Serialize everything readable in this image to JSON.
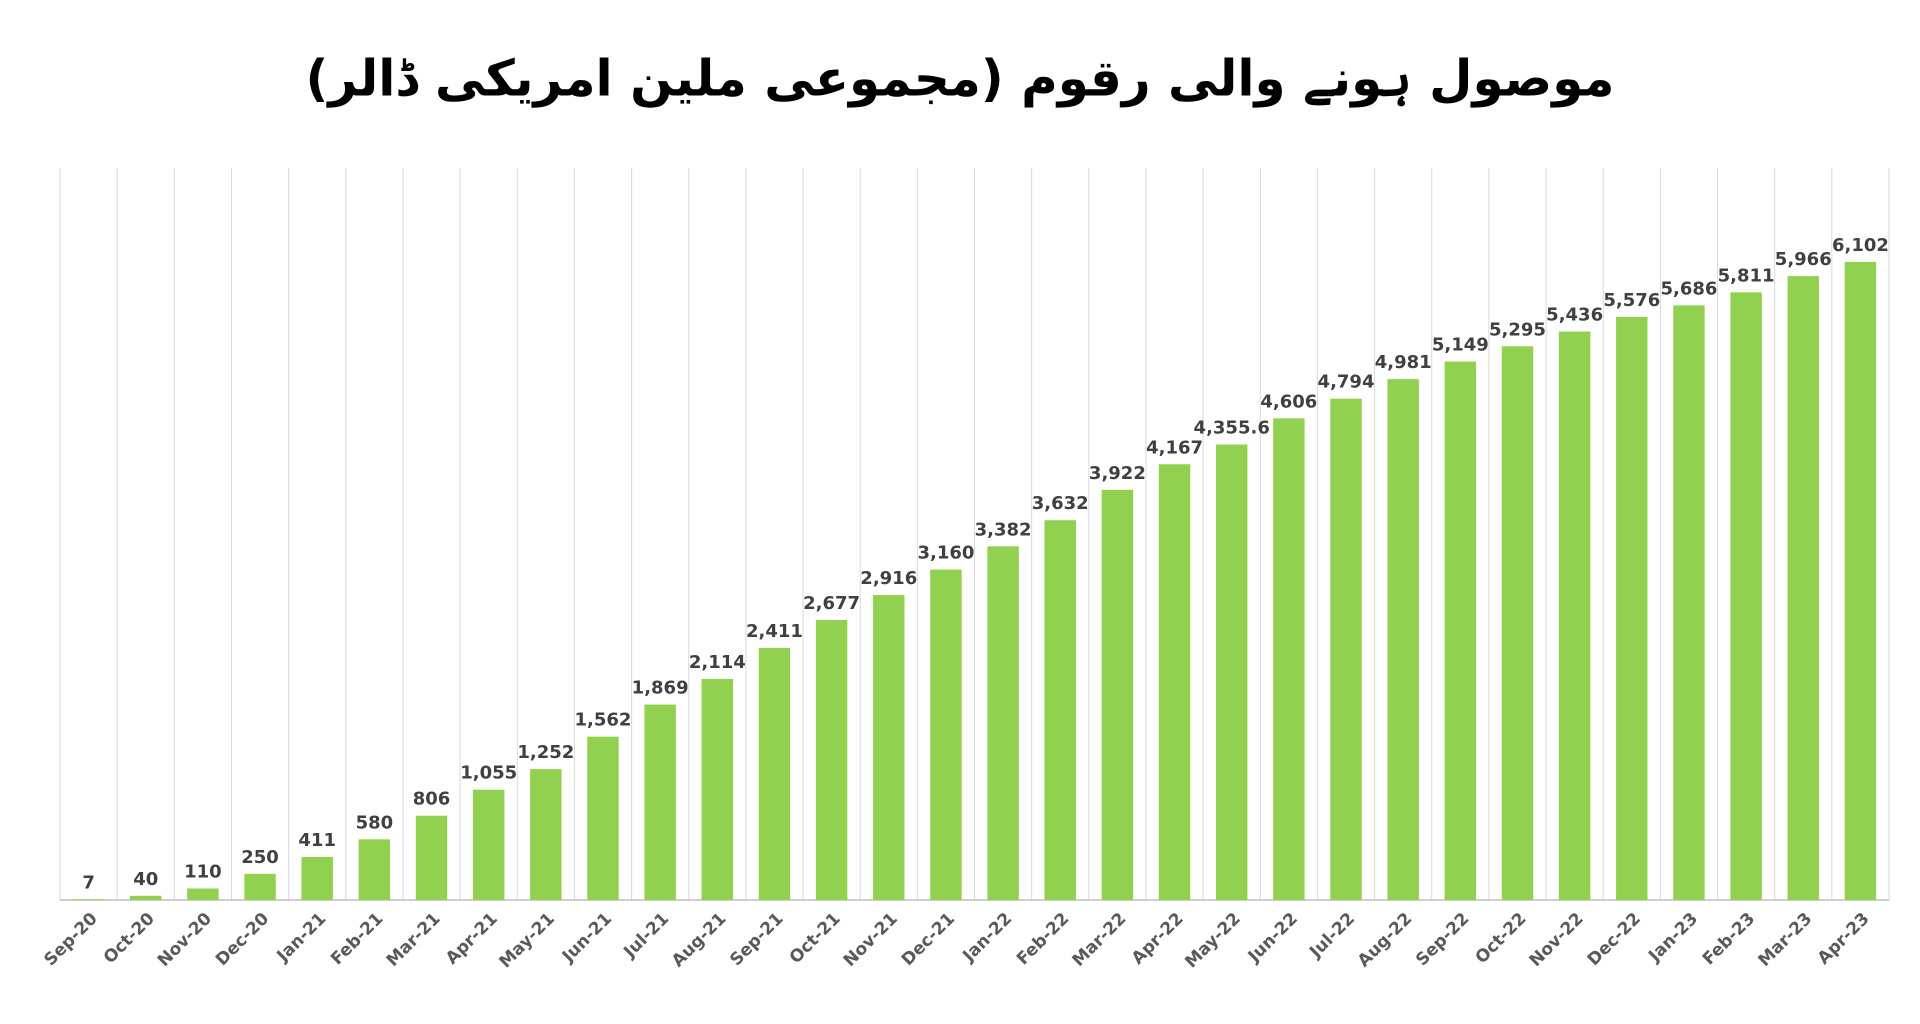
{
  "chart_data": {
    "type": "bar",
    "title": "موصول ہونے والی رقوم (مجموعی ملین امریکی ڈالر)",
    "categories": [
      "Sep-20",
      "Oct-20",
      "Nov-20",
      "Dec-20",
      "Jan-21",
      "Feb-21",
      "Mar-21",
      "Apr-21",
      "May-21",
      "Jun-21",
      "Jul-21",
      "Aug-21",
      "Sep-21",
      "Oct-21",
      "Nov-21",
      "Dec-21",
      "Jan-22",
      "Feb-22",
      "Mar-22",
      "Apr-22",
      "May-22",
      "Jun-22",
      "Jul-22",
      "Aug-22",
      "Sep-22",
      "Oct-22",
      "Nov-22",
      "Dec-22",
      "Jan-23",
      "Feb-23",
      "Mar-23",
      "Apr-23"
    ],
    "values": [
      7,
      40,
      110,
      250,
      411,
      580,
      806,
      1055,
      1252,
      1562,
      1869,
      2114,
      2411,
      2677,
      2916,
      3160,
      3382,
      3632,
      3922,
      4167,
      4355.6,
      4606,
      4794,
      4981,
      5149,
      5295,
      5436,
      5576,
      5686,
      5811,
      5966,
      6102
    ],
    "value_labels": [
      "7",
      "40",
      "110",
      "250",
      "411",
      "580",
      "806",
      "1,055",
      "1,252",
      "1,562",
      "1,869",
      "2,114",
      "2,411",
      "2,677",
      "2,916",
      "3,160",
      "3,382",
      "3,632",
      "3,922",
      "4,167",
      "4,355.6",
      "4,606",
      "4,794",
      "4,981",
      "5,149",
      "5,295",
      "5,436",
      "5,576",
      "5,686",
      "5,811",
      "5,966",
      "6,102"
    ],
    "color": "#92d050",
    "ylim": [
      0,
      7000
    ]
  }
}
